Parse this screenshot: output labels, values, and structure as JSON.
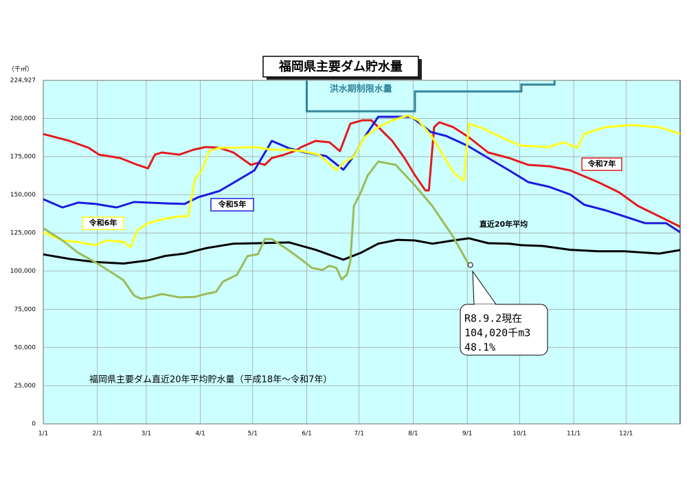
{
  "chart_data": {
    "type": "line",
    "title": "福岡県主要ダム貯水量",
    "unit_label": "（千㎥）",
    "annotation": "福岡県主要ダム直近20年平均貯水量（平成18年～令和7年）",
    "xlim": [
      0,
      365
    ],
    "xticks": [
      {
        "value": 0,
        "label": "1/1"
      },
      {
        "value": 31,
        "label": "2/1"
      },
      {
        "value": 59,
        "label": "3/1"
      },
      {
        "value": 90,
        "label": "4/1"
      },
      {
        "value": 120,
        "label": "5/1"
      },
      {
        "value": 151,
        "label": "6/1"
      },
      {
        "value": 181,
        "label": "7/1"
      },
      {
        "value": 212,
        "label": "8/1"
      },
      {
        "value": 243,
        "label": "9/1"
      },
      {
        "value": 273,
        "label": "10/1"
      },
      {
        "value": 304,
        "label": "11/1"
      },
      {
        "value": 334,
        "label": "12/1"
      }
    ],
    "ylim": [
      0,
      224927
    ],
    "yticks": [
      0,
      {
        "value": 25000,
        "label": "25,000"
      },
      {
        "value": 50000,
        "label": "50,000"
      },
      {
        "value": 75000,
        "label": "75,000"
      },
      {
        "value": 100000,
        "label": "100,000"
      },
      {
        "value": 125000,
        "label": "125,000"
      },
      {
        "value": 150000,
        "label": "150,000"
      },
      {
        "value": 175000,
        "label": "175,000"
      },
      {
        "value": 200000,
        "label": "200,000"
      },
      {
        "value": 224927,
        "label": "224,927"
      }
    ],
    "grid": true,
    "series": [
      {
        "name": "令和7年",
        "color": "#e31a1c",
        "x": [
          0,
          15,
          26,
          32,
          44,
          54,
          60,
          64,
          68,
          78,
          86,
          93,
          101,
          109,
          119,
          123,
          127,
          131,
          137,
          144,
          148,
          156,
          164,
          170,
          176,
          183,
          188,
          194,
          200,
          207,
          213,
          219,
          221,
          224,
          227,
          235,
          244,
          255,
          267,
          278,
          290,
          302,
          318,
          330,
          341,
          353,
          365
        ],
        "values": [
          189800,
          185300,
          180800,
          176300,
          174100,
          169600,
          167300,
          176300,
          177700,
          176300,
          179500,
          181300,
          180800,
          177700,
          169600,
          170900,
          169600,
          174100,
          175900,
          178600,
          181300,
          185300,
          184400,
          178600,
          196600,
          198800,
          198800,
          192100,
          185300,
          174100,
          162800,
          152900,
          152900,
          194300,
          197500,
          194300,
          187600,
          177700,
          174100,
          169600,
          168700,
          166000,
          158300,
          151600,
          142600,
          135900,
          129100
        ]
      },
      {
        "name": "令和5年",
        "color": "#1a1ae0",
        "x": [
          0,
          11,
          20,
          30,
          42,
          52,
          70,
          81,
          89,
          101,
          111,
          121,
          131,
          141,
          150,
          162,
          172,
          178,
          184,
          192,
          202,
          211,
          222,
          231,
          243,
          255,
          267,
          278,
          290,
          302,
          310,
          322,
          333,
          345,
          357,
          365
        ],
        "values": [
          147100,
          141700,
          144900,
          144000,
          141700,
          145300,
          144400,
          144000,
          148500,
          152500,
          159200,
          166000,
          185300,
          180400,
          177700,
          175400,
          166400,
          175400,
          187600,
          201100,
          201100,
          201100,
          191200,
          188500,
          182200,
          174100,
          166000,
          158300,
          155200,
          150200,
          143500,
          139900,
          135900,
          131400,
          131400,
          125500
        ]
      },
      {
        "name": "令和6年",
        "color": "#ffff1a",
        "x": [
          0,
          11,
          19,
          30,
          36,
          46,
          50,
          54,
          60,
          70,
          78,
          83,
          87,
          91,
          95,
          101,
          111,
          121,
          131,
          141,
          148,
          158,
          168,
          172,
          178,
          184,
          192,
          200,
          209,
          215,
          223,
          235,
          241,
          244,
          251,
          267,
          274,
          290,
          298,
          306,
          310,
          322,
          337,
          353,
          365
        ],
        "values": [
          125500,
          120100,
          119200,
          117000,
          120100,
          119200,
          115600,
          126900,
          131400,
          134500,
          135900,
          135900,
          160600,
          166000,
          178600,
          180800,
          180800,
          181300,
          179500,
          179500,
          178600,
          176300,
          166000,
          170900,
          175000,
          187600,
          194300,
          198800,
          202000,
          198800,
          187600,
          164800,
          159200,
          196600,
          193900,
          185300,
          182200,
          181300,
          184400,
          180800,
          189800,
          194300,
          195700,
          194300,
          189800
        ]
      },
      {
        "name": "直近20年平均",
        "color": "#000000",
        "x": [
          0,
          15,
          30,
          46,
          60,
          70,
          81,
          93,
          109,
          123,
          141,
          156,
          172,
          182,
          192,
          203,
          213,
          223,
          235,
          244,
          255,
          267,
          274,
          286,
          302,
          318,
          333,
          353,
          365
        ],
        "values": [
          111000,
          108000,
          106000,
          105000,
          107000,
          110000,
          111500,
          115000,
          118000,
          118300,
          118800,
          114000,
          107500,
          112000,
          118000,
          120500,
          120100,
          118000,
          120100,
          121500,
          118300,
          118000,
          117000,
          116500,
          114000,
          113000,
          113000,
          111500,
          113800
        ]
      },
      {
        "color": "#9bbb59",
        "x": [
          0,
          11,
          20,
          30,
          40,
          46,
          52,
          56,
          62,
          68,
          78,
          87,
          93,
          99,
          103,
          111,
          117,
          123,
          127,
          131,
          141,
          148,
          154,
          160,
          164,
          168,
          171,
          174,
          176,
          178,
          182,
          186,
          192,
          202,
          213,
          223,
          235,
          244
        ],
        "values": [
          128200,
          120100,
          112000,
          105700,
          98500,
          94000,
          84100,
          81900,
          83200,
          85000,
          82800,
          83200,
          85000,
          86400,
          93100,
          97600,
          109800,
          111100,
          121000,
          121000,
          113400,
          107500,
          102100,
          100800,
          103500,
          102100,
          94500,
          97600,
          106600,
          142600,
          151600,
          162800,
          171800,
          169600,
          156100,
          142600,
          122400,
          104020
        ]
      }
    ],
    "flood_limit": {
      "label": "洪水期制限水量",
      "color": "#31849b",
      "x": [
        151,
        151,
        213,
        213,
        274,
        274,
        293,
        293
      ],
      "values": [
        224927,
        204700,
        204700,
        217700,
        217700,
        222200,
        222200,
        224927
      ]
    },
    "callout": {
      "lines": [
        "R8.9.2現在",
        "104,020千m3",
        "48.1%"
      ],
      "x": 244,
      "value": 104020
    }
  }
}
